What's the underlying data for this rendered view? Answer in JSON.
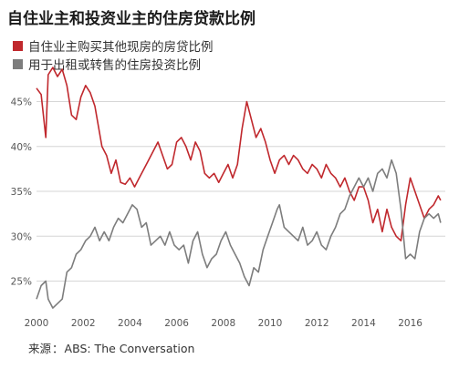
{
  "title": "自住业主和投资业主的住房贷款比例",
  "source": {
    "prefix": "来源",
    "text": "ABS: The Conversation"
  },
  "colors": {
    "owner_occupier": "#c0282d",
    "investor": "#7d7d7d",
    "grid": "#d6d6d6",
    "axis_text": "#555555"
  },
  "chart_data": {
    "type": "line",
    "title": "自住业主和投资业主的住房贷款比例",
    "xlabel": "",
    "ylabel": "",
    "xlim": [
      2000,
      2017.5
    ],
    "ylim": [
      21.5,
      48
    ],
    "x_ticks": [
      "2000",
      "2002",
      "2004",
      "2006",
      "2008",
      "2010",
      "2012",
      "2014",
      "2016"
    ],
    "y_ticks": [
      "25%",
      "30%",
      "35%",
      "40%",
      "45%"
    ],
    "legend": "top-left",
    "grid": true,
    "series": [
      {
        "name": "自住业主购买其他现房的房贷比例",
        "color": "#c0282d",
        "points": [
          [
            2000.0,
            46.5
          ],
          [
            2000.2,
            45.8
          ],
          [
            2000.4,
            41.0
          ],
          [
            2000.5,
            48.0
          ],
          [
            2000.7,
            48.8
          ],
          [
            2000.9,
            47.8
          ],
          [
            2001.1,
            48.6
          ],
          [
            2001.3,
            46.8
          ],
          [
            2001.5,
            43.5
          ],
          [
            2001.7,
            43.0
          ],
          [
            2001.9,
            45.5
          ],
          [
            2002.1,
            46.8
          ],
          [
            2002.3,
            46.0
          ],
          [
            2002.5,
            44.5
          ],
          [
            2002.8,
            40.0
          ],
          [
            2003.0,
            39.0
          ],
          [
            2003.2,
            37.0
          ],
          [
            2003.4,
            38.5
          ],
          [
            2003.6,
            36.0
          ],
          [
            2003.8,
            35.8
          ],
          [
            2004.0,
            36.5
          ],
          [
            2004.2,
            35.5
          ],
          [
            2004.4,
            36.5
          ],
          [
            2004.6,
            37.5
          ],
          [
            2004.8,
            38.5
          ],
          [
            2005.0,
            39.5
          ],
          [
            2005.2,
            40.5
          ],
          [
            2005.4,
            39.0
          ],
          [
            2005.6,
            37.5
          ],
          [
            2005.8,
            38.0
          ],
          [
            2006.0,
            40.5
          ],
          [
            2006.2,
            41.0
          ],
          [
            2006.4,
            40.0
          ],
          [
            2006.6,
            38.5
          ],
          [
            2006.8,
            40.5
          ],
          [
            2007.0,
            39.5
          ],
          [
            2007.2,
            37.0
          ],
          [
            2007.4,
            36.5
          ],
          [
            2007.6,
            37.0
          ],
          [
            2007.8,
            36.0
          ],
          [
            2008.0,
            37.0
          ],
          [
            2008.2,
            38.0
          ],
          [
            2008.4,
            36.5
          ],
          [
            2008.6,
            38.0
          ],
          [
            2008.8,
            42.0
          ],
          [
            2009.0,
            45.0
          ],
          [
            2009.2,
            43.0
          ],
          [
            2009.4,
            41.0
          ],
          [
            2009.6,
            42.0
          ],
          [
            2009.8,
            40.5
          ],
          [
            2010.0,
            38.5
          ],
          [
            2010.2,
            37.0
          ],
          [
            2010.4,
            38.5
          ],
          [
            2010.6,
            39.0
          ],
          [
            2010.8,
            38.0
          ],
          [
            2011.0,
            39.0
          ],
          [
            2011.2,
            38.5
          ],
          [
            2011.4,
            37.5
          ],
          [
            2011.6,
            37.0
          ],
          [
            2011.8,
            38.0
          ],
          [
            2012.0,
            37.5
          ],
          [
            2012.2,
            36.5
          ],
          [
            2012.4,
            38.0
          ],
          [
            2012.6,
            37.0
          ],
          [
            2012.8,
            36.5
          ],
          [
            2013.0,
            35.5
          ],
          [
            2013.2,
            36.5
          ],
          [
            2013.4,
            35.0
          ],
          [
            2013.6,
            34.0
          ],
          [
            2013.8,
            35.5
          ],
          [
            2014.0,
            35.5
          ],
          [
            2014.2,
            34.0
          ],
          [
            2014.4,
            31.5
          ],
          [
            2014.6,
            33.0
          ],
          [
            2014.8,
            30.5
          ],
          [
            2015.0,
            33.0
          ],
          [
            2015.2,
            31.0
          ],
          [
            2015.4,
            30.0
          ],
          [
            2015.6,
            29.5
          ],
          [
            2015.8,
            33.5
          ],
          [
            2016.0,
            36.5
          ],
          [
            2016.2,
            35.0
          ],
          [
            2016.4,
            33.5
          ],
          [
            2016.6,
            32.0
          ],
          [
            2016.8,
            33.0
          ],
          [
            2017.0,
            33.5
          ],
          [
            2017.2,
            34.5
          ],
          [
            2017.3,
            34.0
          ]
        ]
      },
      {
        "name": "用于出租或转售的住房投资比例",
        "color": "#7d7d7d",
        "points": [
          [
            2000.0,
            23.0
          ],
          [
            2000.2,
            24.5
          ],
          [
            2000.4,
            25.0
          ],
          [
            2000.5,
            23.0
          ],
          [
            2000.7,
            22.0
          ],
          [
            2000.9,
            22.5
          ],
          [
            2001.1,
            23.0
          ],
          [
            2001.3,
            26.0
          ],
          [
            2001.5,
            26.5
          ],
          [
            2001.7,
            28.0
          ],
          [
            2001.9,
            28.5
          ],
          [
            2002.1,
            29.5
          ],
          [
            2002.3,
            30.0
          ],
          [
            2002.5,
            31.0
          ],
          [
            2002.7,
            29.5
          ],
          [
            2002.9,
            30.5
          ],
          [
            2003.1,
            29.5
          ],
          [
            2003.3,
            31.0
          ],
          [
            2003.5,
            32.0
          ],
          [
            2003.7,
            31.5
          ],
          [
            2003.9,
            32.5
          ],
          [
            2004.1,
            33.5
          ],
          [
            2004.3,
            33.0
          ],
          [
            2004.5,
            31.0
          ],
          [
            2004.7,
            31.5
          ],
          [
            2004.9,
            29.0
          ],
          [
            2005.1,
            29.5
          ],
          [
            2005.3,
            30.0
          ],
          [
            2005.5,
            29.0
          ],
          [
            2005.7,
            30.5
          ],
          [
            2005.9,
            29.0
          ],
          [
            2006.1,
            28.5
          ],
          [
            2006.3,
            29.0
          ],
          [
            2006.5,
            27.0
          ],
          [
            2006.7,
            29.5
          ],
          [
            2006.9,
            30.5
          ],
          [
            2007.1,
            28.0
          ],
          [
            2007.3,
            26.5
          ],
          [
            2007.5,
            27.5
          ],
          [
            2007.7,
            28.0
          ],
          [
            2007.9,
            29.5
          ],
          [
            2008.1,
            30.5
          ],
          [
            2008.3,
            29.0
          ],
          [
            2008.5,
            28.0
          ],
          [
            2008.7,
            27.0
          ],
          [
            2008.9,
            25.5
          ],
          [
            2009.1,
            24.5
          ],
          [
            2009.3,
            26.5
          ],
          [
            2009.5,
            26.0
          ],
          [
            2009.7,
            28.5
          ],
          [
            2009.9,
            30.0
          ],
          [
            2010.1,
            31.5
          ],
          [
            2010.3,
            33.0
          ],
          [
            2010.4,
            33.5
          ],
          [
            2010.6,
            31.0
          ],
          [
            2010.8,
            30.5
          ],
          [
            2011.0,
            30.0
          ],
          [
            2011.2,
            29.5
          ],
          [
            2011.4,
            31.0
          ],
          [
            2011.6,
            29.0
          ],
          [
            2011.8,
            29.5
          ],
          [
            2012.0,
            30.5
          ],
          [
            2012.2,
            29.0
          ],
          [
            2012.4,
            28.5
          ],
          [
            2012.6,
            30.0
          ],
          [
            2012.8,
            31.0
          ],
          [
            2013.0,
            32.5
          ],
          [
            2013.2,
            33.0
          ],
          [
            2013.4,
            34.5
          ],
          [
            2013.6,
            35.5
          ],
          [
            2013.8,
            36.5
          ],
          [
            2014.0,
            35.5
          ],
          [
            2014.2,
            36.5
          ],
          [
            2014.4,
            35.0
          ],
          [
            2014.6,
            37.0
          ],
          [
            2014.8,
            37.5
          ],
          [
            2015.0,
            36.5
          ],
          [
            2015.2,
            38.5
          ],
          [
            2015.4,
            37.0
          ],
          [
            2015.6,
            33.0
          ],
          [
            2015.8,
            27.5
          ],
          [
            2016.0,
            28.0
          ],
          [
            2016.2,
            27.5
          ],
          [
            2016.4,
            30.5
          ],
          [
            2016.6,
            32.0
          ],
          [
            2016.8,
            32.5
          ],
          [
            2017.0,
            32.0
          ],
          [
            2017.2,
            32.5
          ],
          [
            2017.3,
            31.5
          ]
        ]
      }
    ]
  }
}
